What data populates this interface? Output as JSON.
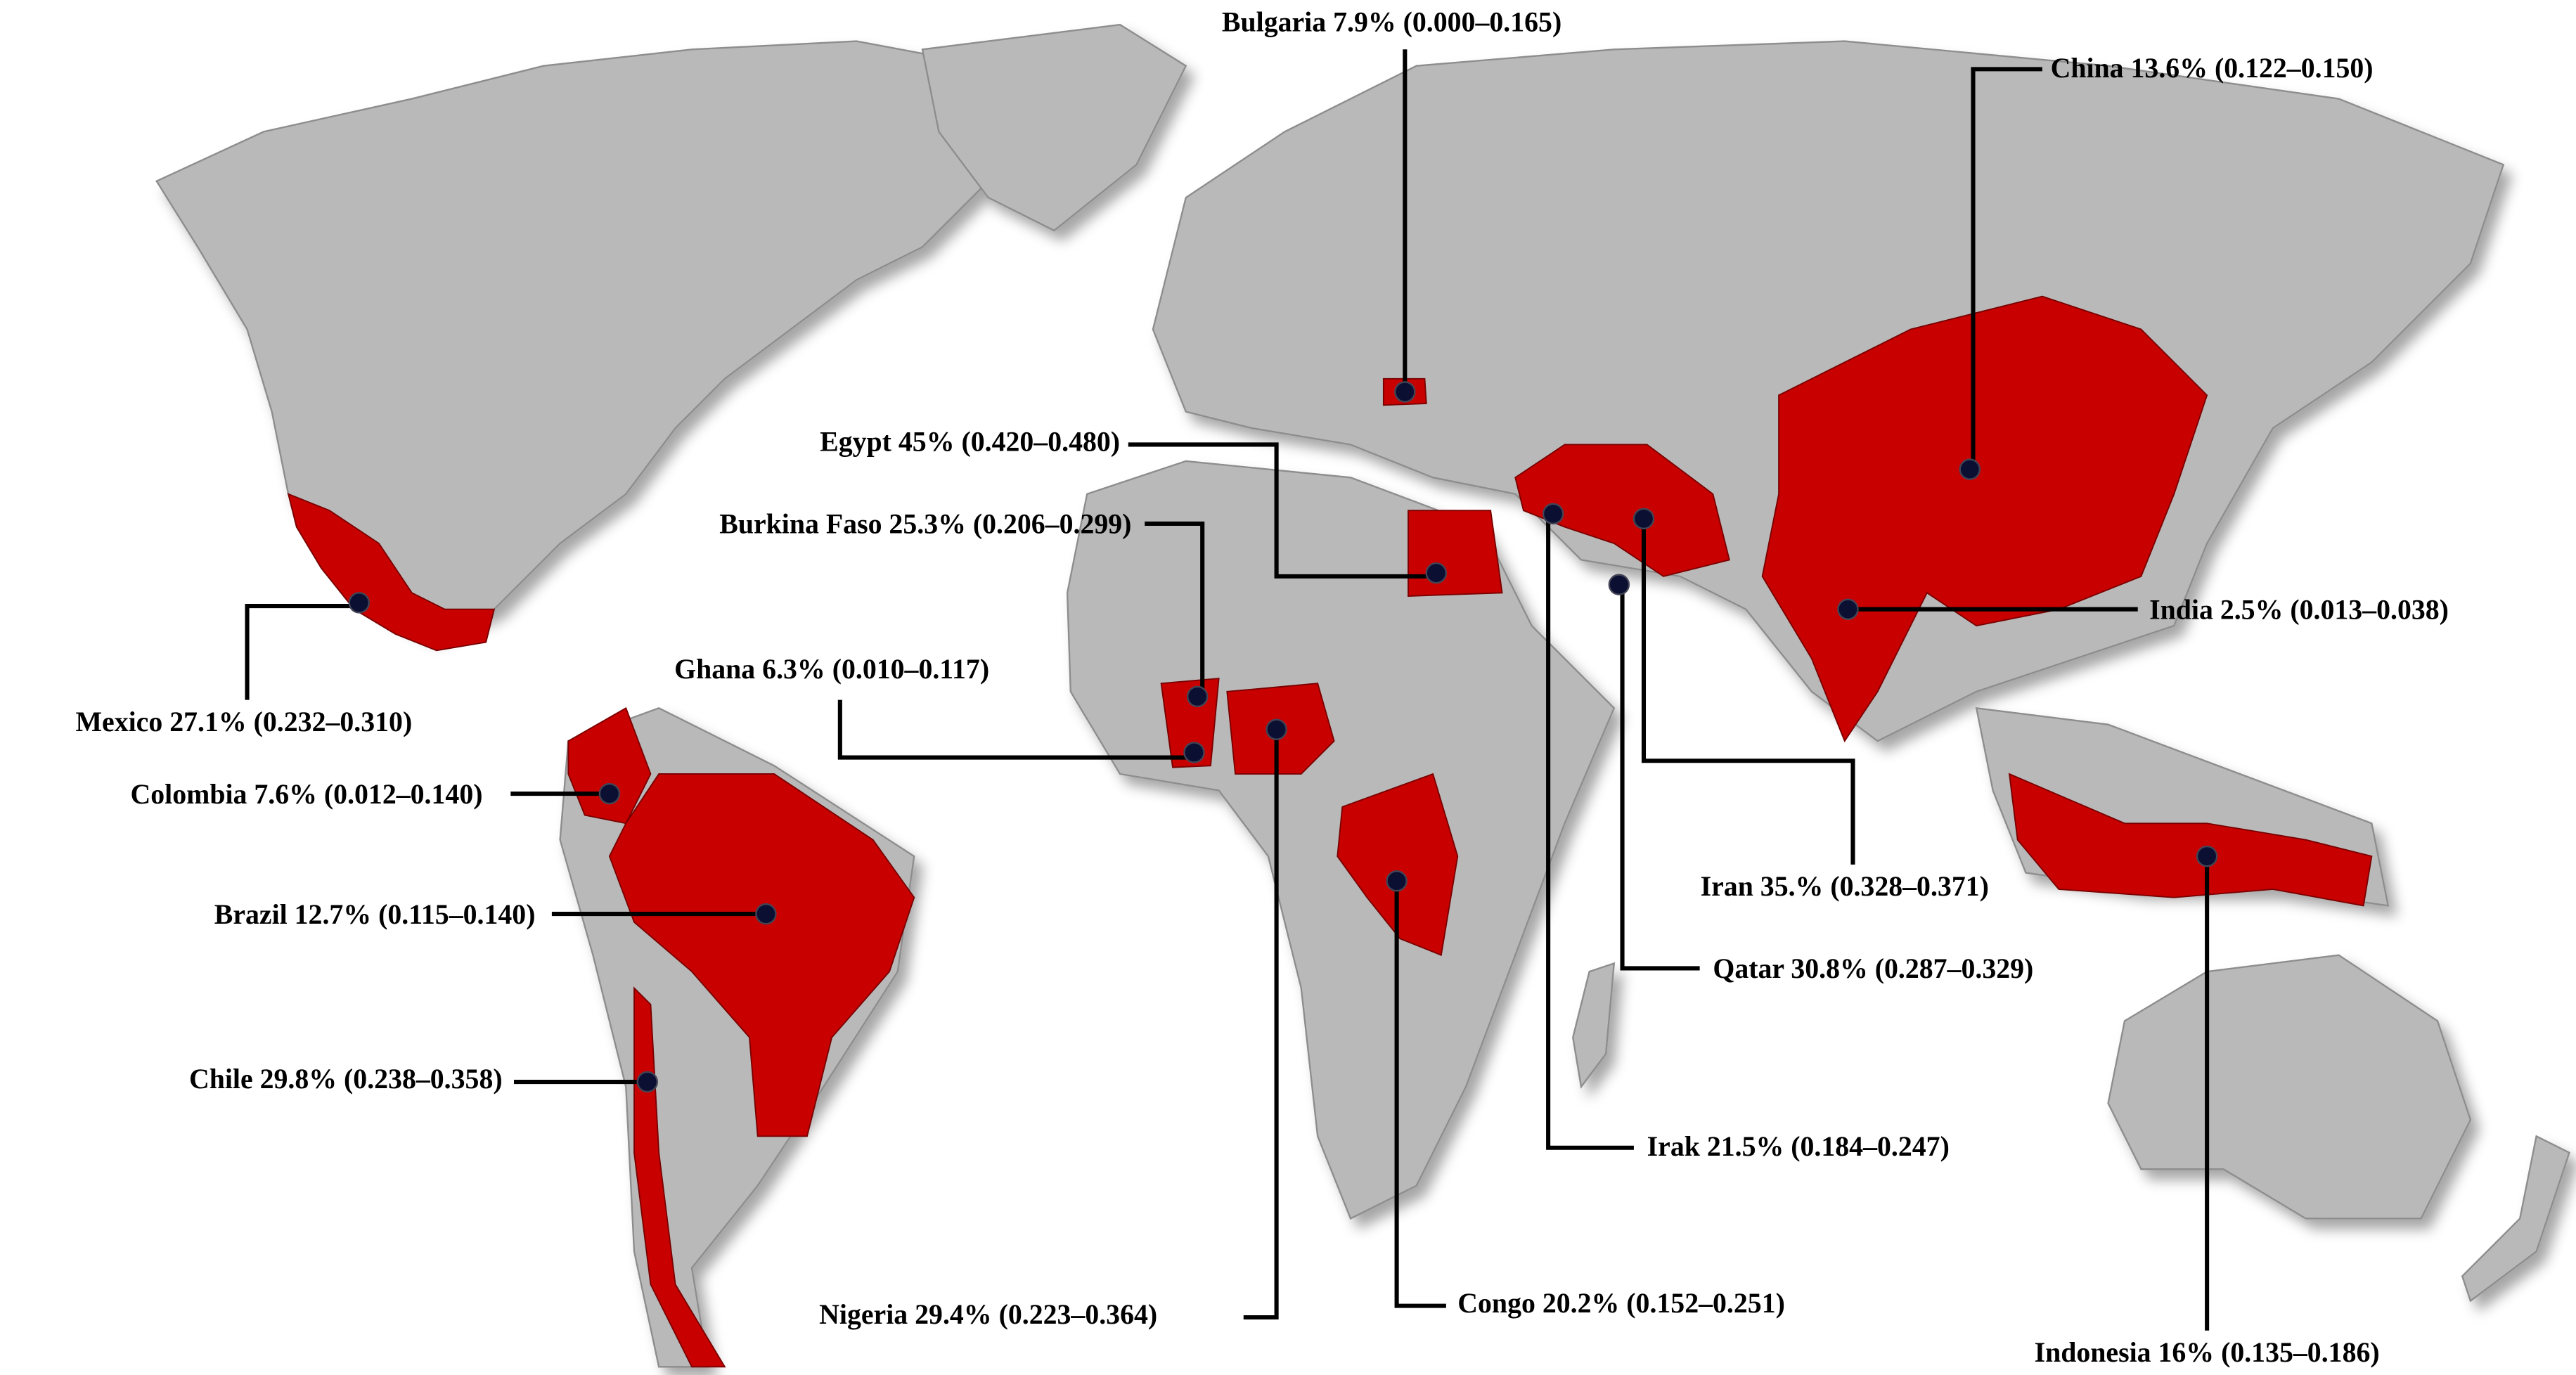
{
  "labels": [
    "Bulgaria 7.9% (0.000–0.165)",
    "China 13.6% (0.122–0.150)",
    "Egypt 45% (0.420–0.480)",
    "Burkina Faso 25.3% (0.206–0.299)",
    "Mexico 27.1% (0.232–0.310)",
    "Ghana 6.3% (0.010–0.117)",
    "Colombia 7.6% (0.012–0.140)",
    "Brazil 12.7% (0.115–0.140)",
    "Chile 29.8% (0.238–0.358)",
    "Nigeria 29.4% (0.223–0.364)",
    "Congo 20.2% (0.152–0.251)",
    "India 2.5% (0.013–0.038)",
    "Iran 35.% (0.328–0.371)",
    "Qatar 30.8% (0.287–0.329)",
    "Irak 21.5% (0.184–0.247)",
    "Indonesia 16% (0.135–0.186)"
  ]
}
